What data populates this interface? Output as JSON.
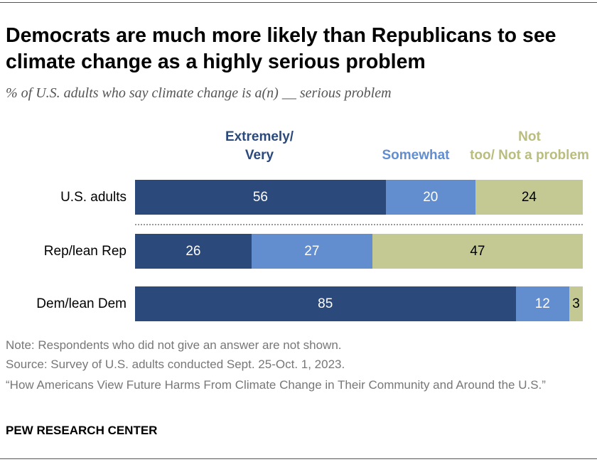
{
  "title": "Democrats are much more likely than Republicans to see climate change as a highly serious problem",
  "subtitle": "% of U.S. adults who say climate change is a(n) __ serious problem",
  "notes": [
    "Note: Respondents who did not give an answer are not shown.",
    "Source: Survey of U.S. adults conducted Sept. 25-Oct. 1, 2023.",
    "“How Americans View Future Harms From Climate Change in Their Community and Around the U.S.”"
  ],
  "brand": "PEW RESEARCH CENTER",
  "chart_data": {
    "type": "bar",
    "orientation": "horizontal-stacked",
    "categories": [
      "U.S. adults",
      "Rep/lean Rep",
      "Dem/lean Dem"
    ],
    "series": [
      {
        "name": "Extremely/ Very",
        "color": "#2b4a7b",
        "label_color": "#ffffff",
        "values": [
          56,
          26,
          85
        ]
      },
      {
        "name": "Somewhat",
        "color": "#628ecf",
        "label_color": "#ffffff",
        "values": [
          20,
          27,
          12
        ]
      },
      {
        "name": "Not too/ Not a problem",
        "color": "#c4c994",
        "label_color": "#000000",
        "values": [
          24,
          47,
          3
        ]
      }
    ],
    "legend_colors": [
      "#2b4a7b",
      "#628ecf",
      "#b9bd7e"
    ],
    "legend_placement": "top",
    "xlim": [
      0,
      100
    ]
  }
}
